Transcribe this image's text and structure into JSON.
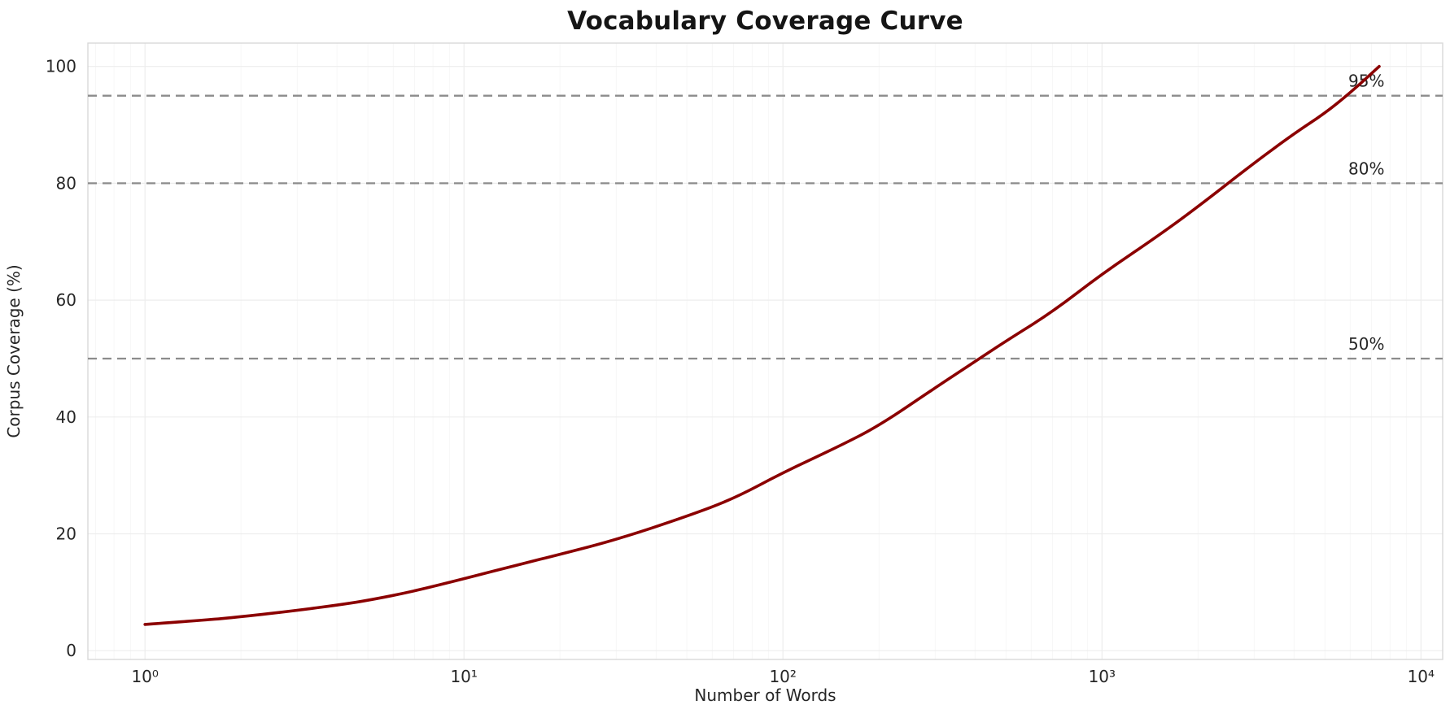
{
  "chart_data": {
    "type": "line",
    "title": "Vocabulary Coverage Curve",
    "xlabel": "Number of Words",
    "ylabel": "Corpus Coverage (%)",
    "x_scale": "log",
    "xlim": [
      0.662,
      11700
    ],
    "ylim": [
      -1.5,
      104
    ],
    "grid": true,
    "x_ticks": [
      {
        "value": 1,
        "label": "10⁰"
      },
      {
        "value": 10,
        "label": "10¹"
      },
      {
        "value": 100,
        "label": "10²"
      },
      {
        "value": 1000,
        "label": "10³"
      },
      {
        "value": 10000,
        "label": "10⁴"
      }
    ],
    "y_ticks": [
      {
        "value": 0,
        "label": "0"
      },
      {
        "value": 20,
        "label": "20"
      },
      {
        "value": 40,
        "label": "40"
      },
      {
        "value": 60,
        "label": "60"
      },
      {
        "value": 80,
        "label": "80"
      },
      {
        "value": 100,
        "label": "100"
      }
    ],
    "reference_lines": [
      {
        "y": 50,
        "label": "50%"
      },
      {
        "y": 80,
        "label": "80%"
      },
      {
        "y": 95,
        "label": "95%"
      }
    ],
    "series": [
      {
        "name": "vocabulary-coverage",
        "color": "#8B0000",
        "x": [
          1,
          1.5,
          2,
          3,
          4,
          5,
          7,
          10,
          15,
          20,
          30,
          50,
          70,
          100,
          150,
          200,
          300,
          400,
          500,
          700,
          1000,
          1500,
          2000,
          3000,
          4000,
          5000,
          6000,
          7400
        ],
        "y": [
          4.5,
          5.2,
          5.8,
          6.9,
          7.8,
          8.6,
          10.2,
          12.3,
          14.8,
          16.5,
          19.0,
          23.0,
          26.0,
          30.5,
          35.0,
          38.5,
          45.0,
          49.5,
          53.0,
          58.0,
          64.5,
          71.0,
          76.0,
          83.5,
          88.5,
          92.0,
          95.5,
          100.0
        ]
      }
    ],
    "colors": {
      "curve": "#8B0000",
      "reference_line": "#8c8c8c",
      "grid_major": "#ededed",
      "grid_minor": "#f7f7f7",
      "plot_border": "#d8d8d8",
      "text": "#262626"
    },
    "legend": null
  }
}
